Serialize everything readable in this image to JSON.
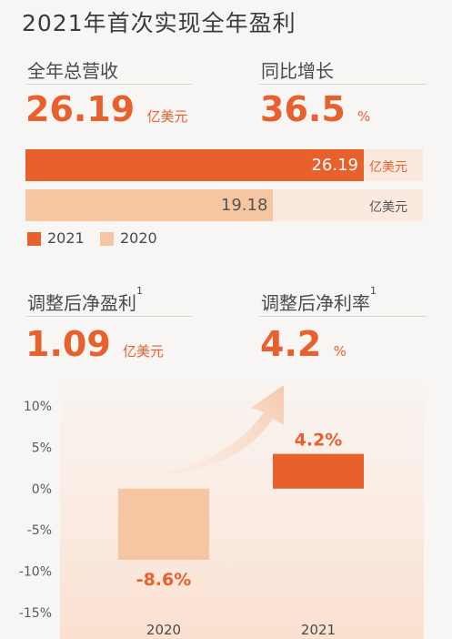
{
  "title": "2021年首次实现全年盈利",
  "revenue": {
    "label": "全年总营收",
    "value": "26.19",
    "unit": "亿美元"
  },
  "growth": {
    "label": "同比增长",
    "value": "36.5",
    "unit": "%"
  },
  "adj_profit": {
    "label": "调整后净盈利",
    "sup": "1",
    "value": "1.09",
    "unit": "亿美元"
  },
  "adj_margin": {
    "label": "调整后净利率",
    "sup": "1",
    "value": "4.2",
    "unit": "%"
  },
  "colors": {
    "accent": "#e8602c",
    "light": "#f6c6a2",
    "track": "#fbe9e0",
    "bg": "#f7f6f4"
  },
  "chart_data": [
    {
      "type": "bar",
      "orientation": "horizontal",
      "categories": [
        "2021",
        "2020"
      ],
      "values": [
        26.19,
        19.18
      ],
      "value_labels": [
        "26.19",
        "19.18"
      ],
      "unit": "亿美元",
      "legend": [
        "2021",
        "2020"
      ],
      "legend_position": "bottom-left",
      "colors": [
        "#e8602c",
        "#f6c6a2"
      ]
    },
    {
      "type": "bar",
      "categories": [
        "2020",
        "2021"
      ],
      "values": [
        -8.6,
        4.2
      ],
      "data_labels": [
        "-8.6%",
        "4.2%"
      ],
      "yticks": [
        "10%",
        "5%",
        "0%",
        "-5%",
        "-10%",
        "-15%"
      ],
      "ylim": [
        -15,
        10
      ],
      "colors": [
        "#f6c6a2",
        "#e8602c"
      ],
      "grid": false,
      "annotation": "arrow-up-right"
    }
  ]
}
